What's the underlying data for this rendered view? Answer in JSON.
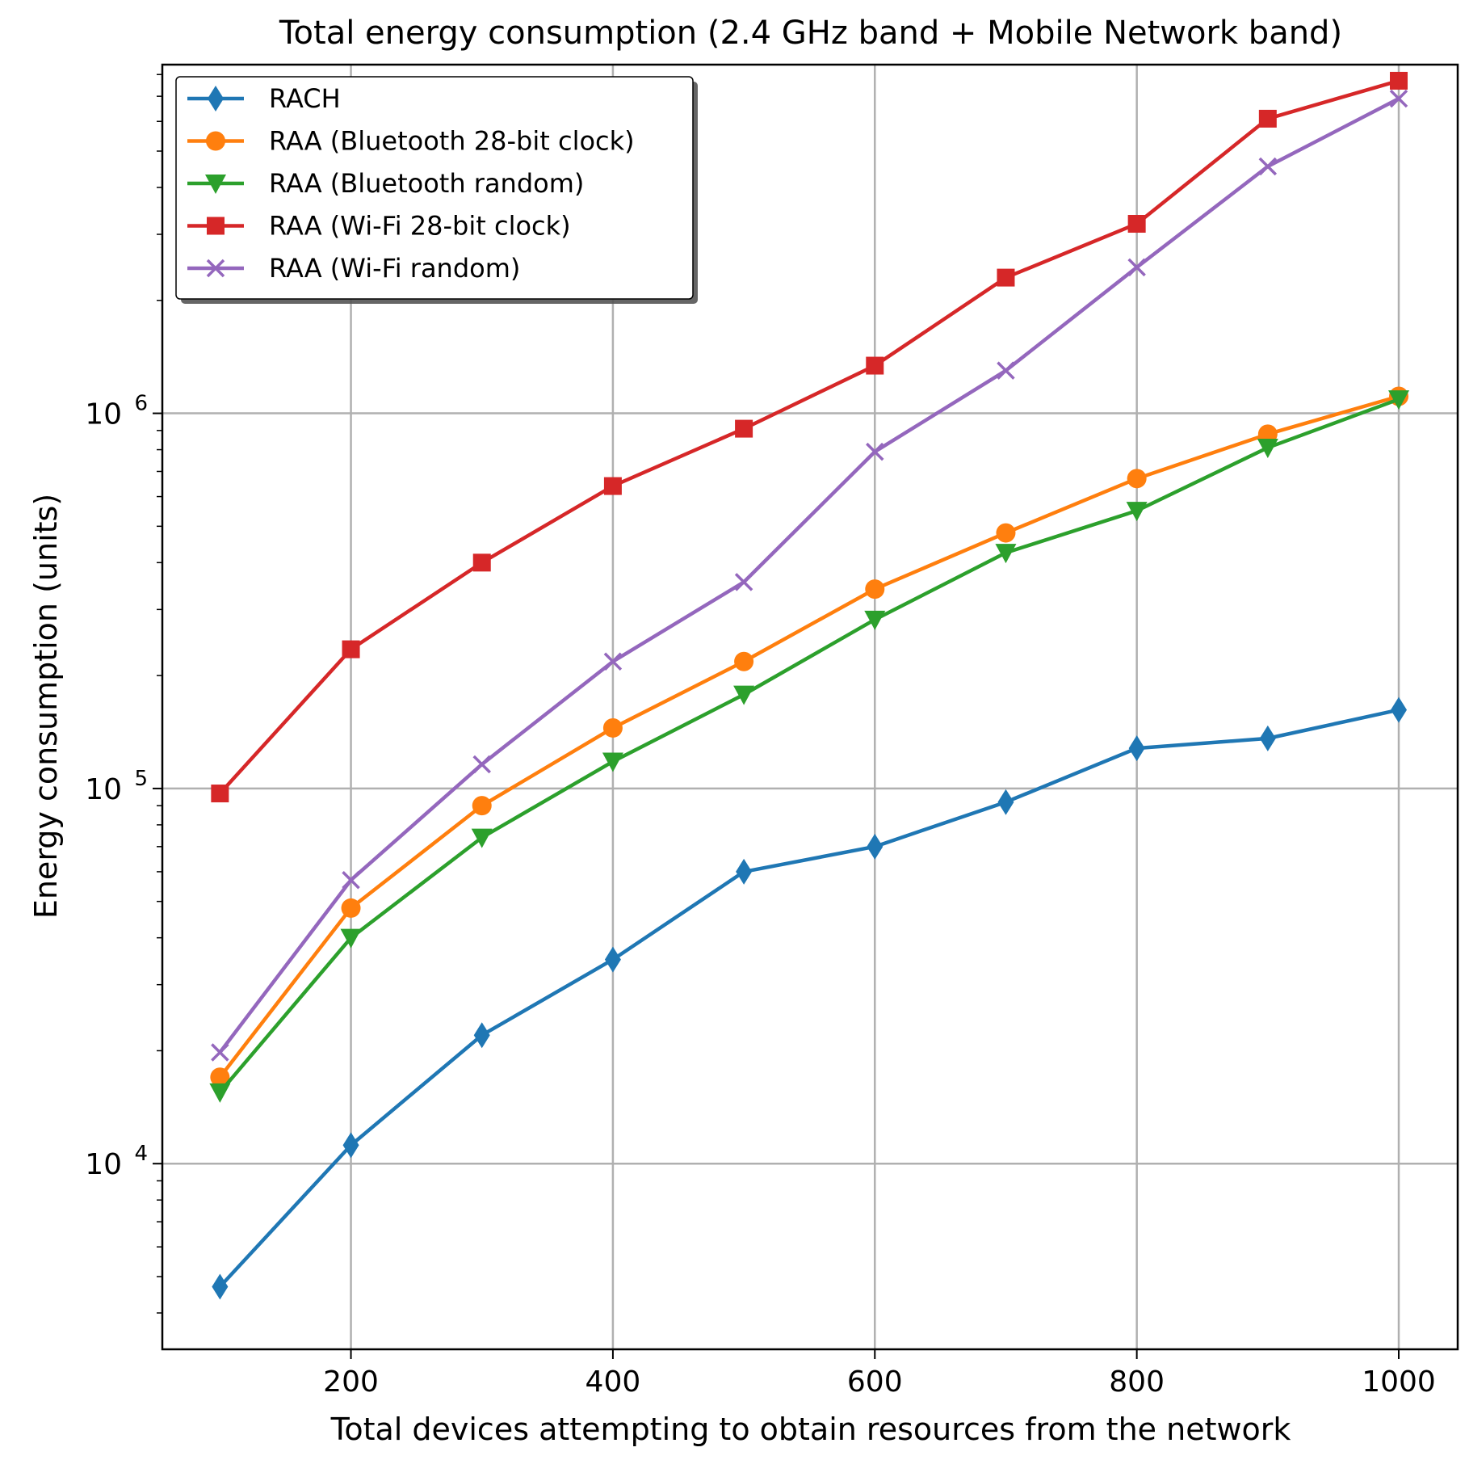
{
  "chart_data": {
    "type": "line",
    "title": "Total energy consumption (2.4 GHz band + Mobile Network band)",
    "xlabel": "Total devices attempting to obtain resources from the network",
    "ylabel": "Energy consumption (units)",
    "yscale": "log",
    "xlim": [
      56,
      1045
    ],
    "ylim": [
      3200,
      8500000
    ],
    "grid": true,
    "legend_position": "top-left",
    "x": [
      100,
      200,
      300,
      400,
      500,
      600,
      700,
      800,
      900,
      1000
    ],
    "x_ticks": [
      200,
      400,
      600,
      800,
      1000
    ],
    "y_ticks": [
      {
        "value": 10000,
        "base": "10",
        "exp": "4"
      },
      {
        "value": 100000,
        "base": "10",
        "exp": "5"
      },
      {
        "value": 1000000,
        "base": "10",
        "exp": "6"
      }
    ],
    "series": [
      {
        "name": "RACH",
        "color": "#1f77b4",
        "marker": "diamond",
        "values": [
          4700,
          11200,
          22000,
          35000,
          60000,
          70000,
          92000,
          128000,
          136000,
          162000
        ]
      },
      {
        "name": "RAA (Bluetooth 28-bit clock)",
        "color": "#ff7f0e",
        "marker": "circle",
        "values": [
          17000,
          48000,
          90000,
          145000,
          218000,
          340000,
          480000,
          670000,
          880000,
          1110000
        ]
      },
      {
        "name": "RAA (Bluetooth random)",
        "color": "#2ca02c",
        "marker": "triangle-down",
        "values": [
          15500,
          40000,
          74000,
          118000,
          178000,
          282000,
          425000,
          550000,
          810000,
          1090000
        ]
      },
      {
        "name": "RAA (Wi-Fi 28-bit clock)",
        "color": "#d62728",
        "marker": "square",
        "values": [
          97000,
          235000,
          400000,
          640000,
          910000,
          1340000,
          2300000,
          3200000,
          6100000,
          7700000
        ]
      },
      {
        "name": "RAA (Wi-Fi random)",
        "color": "#9467bd",
        "marker": "x",
        "values": [
          19800,
          57000,
          116000,
          218000,
          355000,
          790000,
          1300000,
          2450000,
          4550000,
          6900000
        ]
      }
    ]
  }
}
